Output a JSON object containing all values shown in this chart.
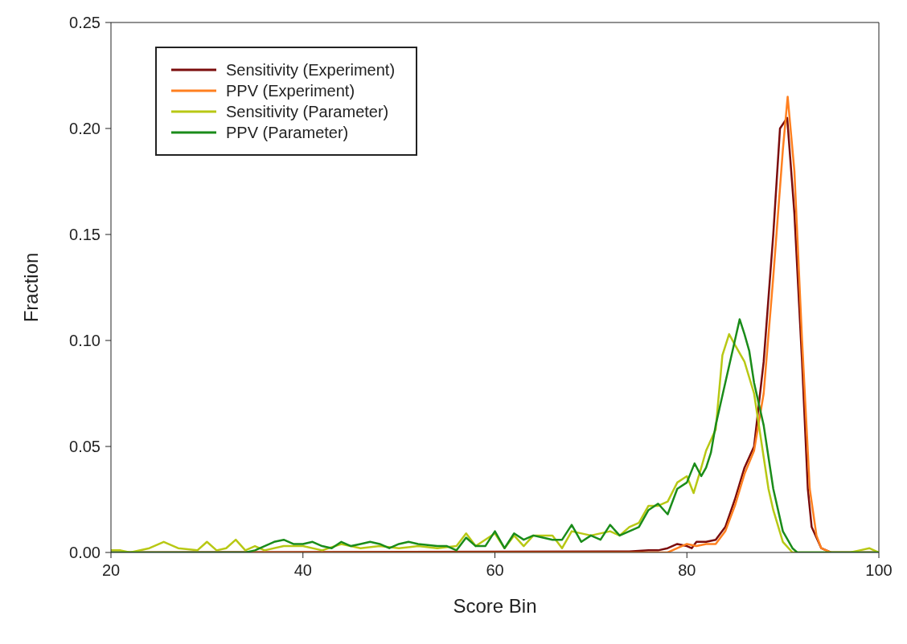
{
  "chart_data": {
    "type": "line",
    "xlabel": "Score Bin",
    "ylabel": "Fraction",
    "xlim": [
      20,
      100
    ],
    "xticks": [
      20,
      40,
      60,
      80,
      100
    ],
    "ylim": [
      0,
      0.25
    ],
    "yticks": [
      {
        "value": 0,
        "label": "0.00"
      },
      {
        "value": 0.05,
        "label": "0.05"
      },
      {
        "value": 0.1,
        "label": "0.10"
      },
      {
        "value": 0.15,
        "label": "0.15"
      },
      {
        "value": 0.2,
        "label": "0.20"
      },
      {
        "value": 0.25,
        "label": "0.25"
      }
    ],
    "legend": "top left",
    "marker": "none",
    "line_style": "solid",
    "series": [
      {
        "name": "Sensitivity (Experiment)",
        "color": "#7b0c0c",
        "x": [
          20,
          72,
          74,
          76,
          77,
          78,
          79,
          80,
          80.5,
          81,
          82,
          83,
          84,
          85,
          86,
          87,
          88,
          89,
          89.7,
          90.45,
          91.2,
          92,
          92.6,
          93,
          94,
          95,
          100
        ],
        "values": [
          0,
          0.0005,
          0.0005,
          0.001,
          0.001,
          0.002,
          0.004,
          0.003,
          0.002,
          0.005,
          0.005,
          0.006,
          0.012,
          0.025,
          0.04,
          0.05,
          0.09,
          0.15,
          0.2,
          0.205,
          0.16,
          0.09,
          0.03,
          0.012,
          0.002,
          0,
          0
        ]
      },
      {
        "name": "PPV (Experiment)",
        "color": "#ff8020",
        "x": [
          20,
          78,
          79,
          80,
          81,
          82,
          83,
          84,
          85,
          86,
          87,
          88,
          89,
          90,
          90.5,
          91.2,
          92,
          92.8,
          93.5,
          94,
          95,
          100
        ],
        "values": [
          0,
          0,
          0.002,
          0.004,
          0.003,
          0.004,
          0.004,
          0.01,
          0.022,
          0.037,
          0.048,
          0.075,
          0.13,
          0.19,
          0.215,
          0.18,
          0.1,
          0.03,
          0.008,
          0.002,
          0,
          0
        ]
      },
      {
        "name": "Sensitivity (Parameter)",
        "color": "#b8c814",
        "x": [
          20,
          21,
          22,
          24,
          25.5,
          27,
          29,
          30,
          31,
          32,
          33,
          34,
          35,
          36,
          38,
          40,
          42,
          44,
          46,
          48,
          50,
          52,
          54,
          56,
          57,
          58,
          60,
          61,
          62,
          63,
          64,
          66,
          67,
          68,
          70,
          72,
          73,
          74,
          75,
          76,
          77,
          78,
          79,
          80,
          80.7,
          81.5,
          82,
          83,
          83.7,
          84.4,
          85,
          86,
          87,
          88,
          88.5,
          89,
          90,
          91,
          97,
          98,
          99,
          100
        ],
        "values": [
          0.001,
          0.001,
          0,
          0.002,
          0.005,
          0.002,
          0.001,
          0.005,
          0.001,
          0.002,
          0.006,
          0.001,
          0.003,
          0.001,
          0.003,
          0.003,
          0.001,
          0.004,
          0.002,
          0.003,
          0.002,
          0.003,
          0.002,
          0.003,
          0.009,
          0.003,
          0.009,
          0.002,
          0.008,
          0.003,
          0.008,
          0.008,
          0.002,
          0.01,
          0.008,
          0.01,
          0.008,
          0.012,
          0.014,
          0.022,
          0.022,
          0.024,
          0.033,
          0.036,
          0.028,
          0.04,
          0.048,
          0.058,
          0.093,
          0.103,
          0.098,
          0.09,
          0.075,
          0.045,
          0.03,
          0.02,
          0.005,
          0,
          0,
          0.001,
          0.002,
          0
        ]
      },
      {
        "name": "PPV (Parameter)",
        "color": "#1a8c1a",
        "x": [
          20,
          34,
          35,
          36,
          37,
          38,
          39,
          40,
          41,
          42,
          43,
          44,
          45,
          46,
          47,
          48,
          49,
          50,
          51,
          52,
          54,
          55,
          56,
          57,
          58,
          59,
          60,
          61,
          62,
          63,
          64,
          65,
          66,
          67,
          68,
          69,
          70,
          71,
          72,
          73,
          74,
          75,
          76,
          77,
          78,
          79,
          80,
          80.8,
          81.5,
          82,
          82.5,
          83,
          84,
          85,
          85.5,
          86,
          86.5,
          87,
          88,
          88.5,
          89,
          90,
          91,
          91.5,
          100
        ],
        "values": [
          0,
          0,
          0.001,
          0.003,
          0.005,
          0.006,
          0.004,
          0.004,
          0.005,
          0.003,
          0.002,
          0.005,
          0.003,
          0.004,
          0.005,
          0.004,
          0.002,
          0.004,
          0.005,
          0.004,
          0.003,
          0.003,
          0.001,
          0.007,
          0.003,
          0.003,
          0.01,
          0.002,
          0.009,
          0.006,
          0.008,
          0.007,
          0.006,
          0.006,
          0.013,
          0.005,
          0.008,
          0.006,
          0.013,
          0.008,
          0.01,
          0.012,
          0.02,
          0.023,
          0.018,
          0.03,
          0.033,
          0.042,
          0.036,
          0.04,
          0.047,
          0.06,
          0.08,
          0.1,
          0.11,
          0.103,
          0.095,
          0.08,
          0.06,
          0.045,
          0.03,
          0.01,
          0.002,
          0,
          0
        ]
      }
    ]
  }
}
